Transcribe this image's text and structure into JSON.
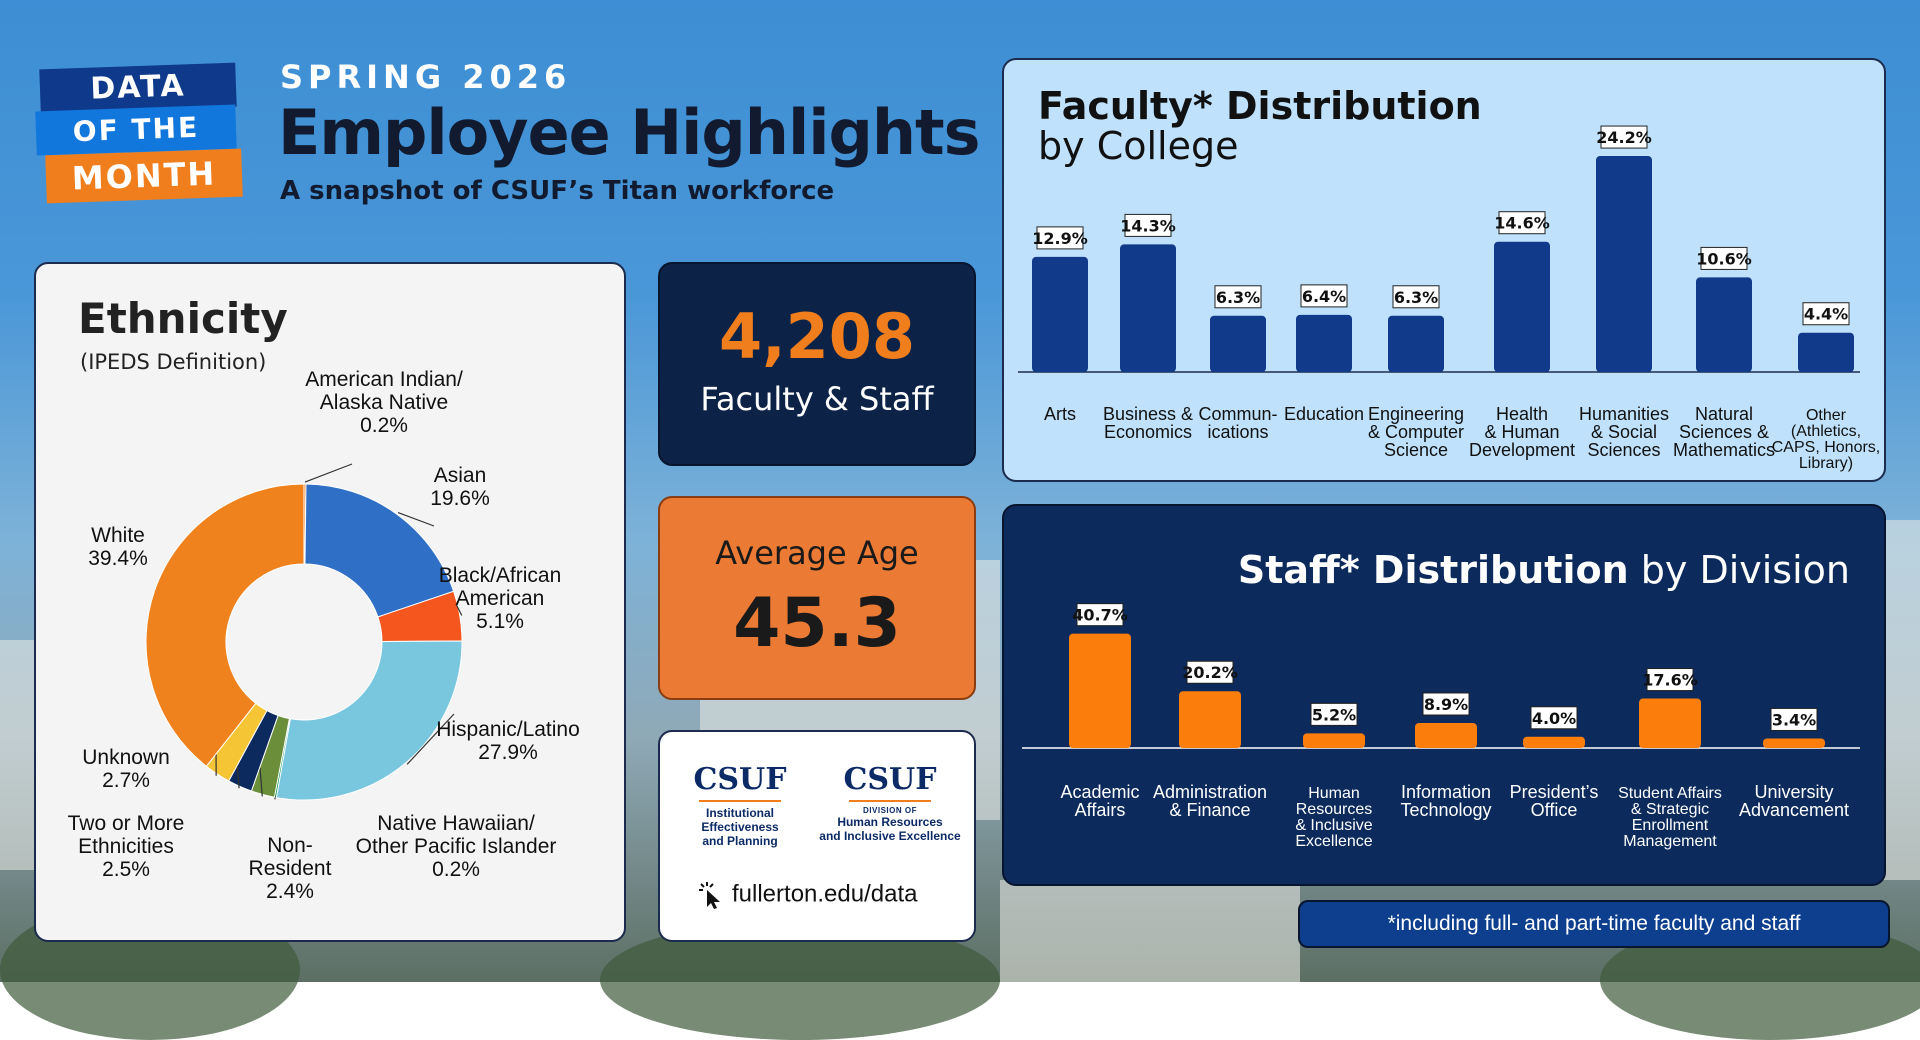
{
  "header": {
    "badge": [
      "DATA",
      "OF THE",
      "MONTH"
    ],
    "kicker": "SPRING 2026",
    "title": "Employee Highlights",
    "tagline": "A snapshot of CSUF’s Titan workforce"
  },
  "colors": {
    "navy": "#0c2a5c",
    "orange": "#f07e1d",
    "faculty_bar": "#123a8a",
    "staff_bar": "#fb7d0c",
    "light_blue_panel": "#bfe1fb"
  },
  "stats": {
    "headcount": "4,208",
    "headcount_label": "Faculty & Staff",
    "avg_age_label": "Average Age",
    "avg_age": "45.3"
  },
  "logos": {
    "left": {
      "word": "CSUF",
      "lines": [
        "Institutional",
        "Effectiveness",
        "and Planning"
      ]
    },
    "right": {
      "word": "CSUF",
      "division": "DIVISION OF",
      "lines": [
        "Human Resources",
        "and Inclusive Excellence"
      ]
    },
    "url": "fullerton.edu/data",
    "url_icon": "cursor-click-icon"
  },
  "footnote": "*including full- and part-time faculty and staff",
  "chart_data": [
    {
      "type": "pie",
      "title": "Ethnicity",
      "subtitle": "(IPEDS Definition)",
      "donut": true,
      "slices": [
        {
          "label": [
            "American Indian/",
            "Alaska Native"
          ],
          "value": 0.2,
          "value_label": "0.2%",
          "color": "#f07e1d"
        },
        {
          "label": [
            "Asian"
          ],
          "value": 19.6,
          "value_label": "19.6%",
          "color": "#2f6fc6"
        },
        {
          "label": [
            "Black/African",
            "American"
          ],
          "value": 5.1,
          "value_label": "5.1%",
          "color": "#f4561e"
        },
        {
          "label": [
            "Hispanic/Latino"
          ],
          "value": 27.9,
          "value_label": "27.9%",
          "color": "#79c6df"
        },
        {
          "label": [
            "Native Hawaiian/",
            "Other Pacific Islander"
          ],
          "value": 0.2,
          "value_label": "0.2%",
          "color": "#16a05a"
        },
        {
          "label": [
            "Non-",
            "Resident"
          ],
          "value": 2.4,
          "value_label": "2.4%",
          "color": "#6b8e3a"
        },
        {
          "label": [
            "Two or More",
            "Ethnicities"
          ],
          "value": 2.5,
          "value_label": "2.5%",
          "color": "#0d2a5e"
        },
        {
          "label": [
            "Unknown"
          ],
          "value": 2.7,
          "value_label": "2.7%",
          "color": "#f5c535"
        },
        {
          "label": [
            "White"
          ],
          "value": 39.4,
          "value_label": "39.4%",
          "color": "#f0821e"
        }
      ]
    },
    {
      "type": "bar",
      "title": "Faculty* Distribution",
      "subtitle": "by College",
      "categories": [
        [
          "Arts"
        ],
        [
          "Business &",
          "Economics"
        ],
        [
          "Commun-",
          "ications"
        ],
        [
          "Education"
        ],
        [
          "Engineering",
          "& Computer",
          "Science"
        ],
        [
          "Health",
          "& Human",
          "Development"
        ],
        [
          "Humanities",
          "& Social",
          "Sciences"
        ],
        [
          "Natural",
          "Sciences &",
          "Mathematics"
        ],
        [
          "Other",
          "(Athletics,",
          "CAPS, Honors,",
          "Library)"
        ]
      ],
      "values": [
        12.9,
        14.3,
        6.3,
        6.4,
        6.3,
        14.6,
        24.2,
        10.6,
        4.4
      ],
      "value_labels": [
        "12.9%",
        "14.3%",
        "6.3%",
        "6.4%",
        "6.3%",
        "14.6%",
        "24.2%",
        "10.6%",
        "4.4%"
      ],
      "ylim": [
        0,
        26
      ],
      "grid": false
    },
    {
      "type": "bar",
      "title": "Staff* Distribution",
      "subtitle": "by Division",
      "categories": [
        [
          "Academic",
          "Affairs"
        ],
        [
          "Administration",
          "& Finance"
        ],
        [
          "Human",
          "Resources",
          "& Inclusive",
          "Excellence"
        ],
        [
          "Information",
          "Technology"
        ],
        [
          "President’s",
          "Office"
        ],
        [
          "Student Affairs",
          "& Strategic",
          "Enrollment",
          "Management"
        ],
        [
          "University",
          "Advancement"
        ]
      ],
      "values": [
        40.7,
        20.2,
        5.2,
        8.9,
        4.0,
        17.6,
        3.4
      ],
      "value_labels": [
        "40.7%",
        "20.2%",
        "5.2%",
        "8.9%",
        "4.0%",
        "17.6%",
        "3.4%"
      ],
      "ylim": [
        0,
        42
      ],
      "grid": false
    }
  ]
}
